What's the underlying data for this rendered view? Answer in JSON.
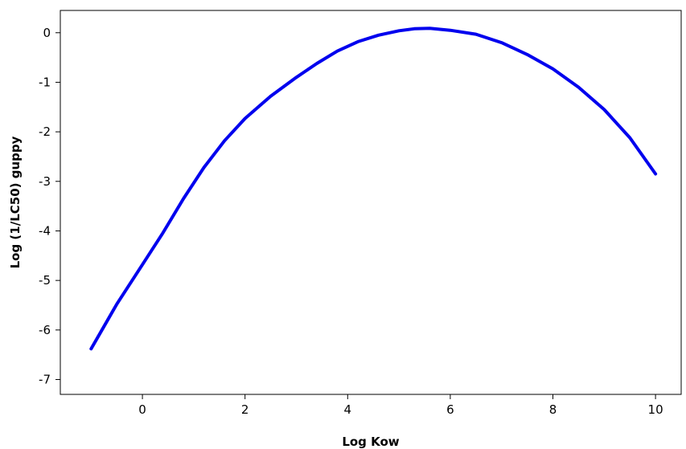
{
  "chart_data": {
    "type": "line",
    "title": "",
    "xlabel": "Log Kow",
    "ylabel": "Log (1/LC50) guppy",
    "xlim": [
      -1.6,
      10.5
    ],
    "ylim": [
      -7.3,
      0.45
    ],
    "xticks": [
      0,
      2,
      4,
      6,
      8,
      10
    ],
    "yticks": [
      0,
      -1,
      -2,
      -3,
      -4,
      -5,
      -6,
      -7
    ],
    "xtick_labels": [
      "0",
      "2",
      "4",
      "6",
      "8",
      "10"
    ],
    "ytick_labels": [
      "0",
      "-1",
      "-2",
      "-3",
      "-4",
      "-5",
      "-6",
      "-7"
    ],
    "grid": false,
    "legend": "none",
    "series": [
      {
        "color": "#0000ee",
        "x": [
          -1.0,
          -0.5,
          0.0,
          0.4,
          0.8,
          1.2,
          1.6,
          2.0,
          2.5,
          3.0,
          3.4,
          3.8,
          4.2,
          4.6,
          5.0,
          5.3,
          5.6,
          6.0,
          6.5,
          7.0,
          7.5,
          8.0,
          8.5,
          9.0,
          9.5,
          10.0
        ],
        "y": [
          -6.38,
          -5.48,
          -4.68,
          -4.04,
          -3.35,
          -2.72,
          -2.18,
          -1.73,
          -1.28,
          -0.9,
          -0.62,
          -0.37,
          -0.18,
          -0.05,
          0.04,
          0.08,
          0.09,
          0.05,
          -0.03,
          -0.2,
          -0.44,
          -0.73,
          -1.1,
          -1.55,
          -2.12,
          -2.85
        ]
      }
    ]
  }
}
